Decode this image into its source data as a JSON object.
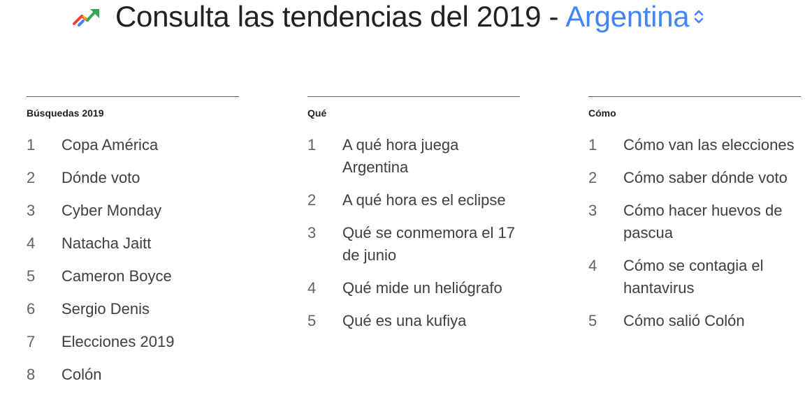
{
  "header": {
    "title": "Consulta las tendencias del 2019 -",
    "country": "Argentina",
    "icon": "trending-up-icon",
    "accent_color": "#4285f4"
  },
  "columns": [
    {
      "heading": "Búsquedas 2019",
      "items": [
        {
          "rank": "1",
          "term": "Copa América"
        },
        {
          "rank": "2",
          "term": "Dónde voto"
        },
        {
          "rank": "3",
          "term": "Cyber Monday"
        },
        {
          "rank": "4",
          "term": "Natacha Jaitt"
        },
        {
          "rank": "5",
          "term": "Cameron Boyce"
        },
        {
          "rank": "6",
          "term": "Sergio Denis"
        },
        {
          "rank": "7",
          "term": "Elecciones 2019"
        },
        {
          "rank": "8",
          "term": "Colón"
        }
      ]
    },
    {
      "heading": "Qué",
      "items": [
        {
          "rank": "1",
          "term": "A qué hora juega Argentina"
        },
        {
          "rank": "2",
          "term": "A qué hora es el eclipse"
        },
        {
          "rank": "3",
          "term": "Qué se conmemora el 17 de junio"
        },
        {
          "rank": "4",
          "term": "Qué mide un heliógrafo"
        },
        {
          "rank": "5",
          "term": "Qué es una kufiya"
        }
      ]
    },
    {
      "heading": "Cómo",
      "items": [
        {
          "rank": "1",
          "term": "Cómo van las elecciones"
        },
        {
          "rank": "2",
          "term": "Cómo saber dónde voto"
        },
        {
          "rank": "3",
          "term": "Cómo hacer huevos de pascua"
        },
        {
          "rank": "4",
          "term": "Cómo se contagia el hantavirus"
        },
        {
          "rank": "5",
          "term": "Cómo salió Colón"
        }
      ]
    }
  ]
}
